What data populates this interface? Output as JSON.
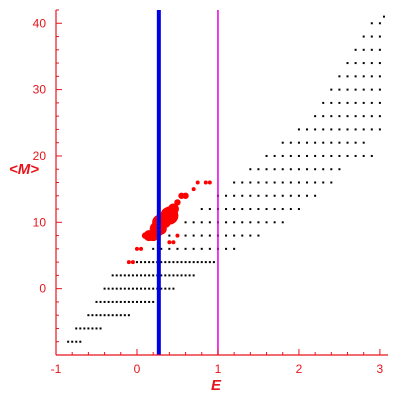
{
  "chart_data": {
    "type": "scatter",
    "title": "",
    "xlabel": "E",
    "ylabel": "<M>",
    "xlim": [
      -1,
      3.1
    ],
    "ylim": [
      -10,
      42
    ],
    "x_ticks": [
      -1,
      0,
      1,
      2,
      3
    ],
    "y_ticks": [
      0,
      10,
      20,
      30,
      40
    ],
    "grid": false,
    "legend": "none",
    "colors": {
      "axes": "#e8141c",
      "background_points": "#000000",
      "highlight_points": "#ff0000",
      "blue_line": "#0000e6",
      "magenta_line": "#e000e0"
    },
    "vertical_lines": [
      {
        "x": 0.27,
        "color": "blue"
      },
      {
        "x": 1.0,
        "color": "magenta"
      }
    ],
    "series": [
      {
        "values": [
          [
            -0.85,
            -8
          ],
          [
            -0.8,
            -8
          ],
          [
            -0.75,
            -8
          ],
          [
            -0.7,
            -8
          ],
          [
            -0.75,
            -6
          ],
          [
            -0.7,
            -6
          ],
          [
            -0.65,
            -6
          ],
          [
            -0.6,
            -6
          ],
          [
            -0.55,
            -6
          ],
          [
            -0.5,
            -6
          ],
          [
            -0.45,
            -6
          ],
          [
            -0.6,
            -4
          ],
          [
            -0.55,
            -4
          ],
          [
            -0.5,
            -4
          ],
          [
            -0.45,
            -4
          ],
          [
            -0.4,
            -4
          ],
          [
            -0.35,
            -4
          ],
          [
            -0.3,
            -4
          ],
          [
            -0.25,
            -4
          ],
          [
            -0.2,
            -4
          ],
          [
            -0.15,
            -4
          ],
          [
            -0.1,
            -4
          ],
          [
            -0.5,
            -2
          ],
          [
            -0.45,
            -2
          ],
          [
            -0.4,
            -2
          ],
          [
            -0.35,
            -2
          ],
          [
            -0.3,
            -2
          ],
          [
            -0.25,
            -2
          ],
          [
            -0.2,
            -2
          ],
          [
            -0.15,
            -2
          ],
          [
            -0.1,
            -2
          ],
          [
            -0.05,
            -2
          ],
          [
            0,
            -2
          ],
          [
            0.05,
            -2
          ],
          [
            0.1,
            -2
          ],
          [
            0.15,
            -2
          ],
          [
            0.2,
            -2
          ],
          [
            -0.4,
            0
          ],
          [
            -0.35,
            0
          ],
          [
            -0.3,
            0
          ],
          [
            -0.25,
            0
          ],
          [
            -0.2,
            0
          ],
          [
            -0.15,
            0
          ],
          [
            -0.1,
            0
          ],
          [
            -0.05,
            0
          ],
          [
            0,
            0
          ],
          [
            0.05,
            0
          ],
          [
            0.1,
            0
          ],
          [
            0.15,
            0
          ],
          [
            0.2,
            0
          ],
          [
            0.25,
            0
          ],
          [
            0.3,
            0
          ],
          [
            0.35,
            0
          ],
          [
            0.4,
            0
          ],
          [
            0.45,
            0
          ],
          [
            -0.3,
            2
          ],
          [
            -0.25,
            2
          ],
          [
            -0.2,
            2
          ],
          [
            -0.15,
            2
          ],
          [
            -0.1,
            2
          ],
          [
            -0.05,
            2
          ],
          [
            0,
            2
          ],
          [
            0.05,
            2
          ],
          [
            0.1,
            2
          ],
          [
            0.15,
            2
          ],
          [
            0.2,
            2
          ],
          [
            0.25,
            2
          ],
          [
            0.3,
            2
          ],
          [
            0.35,
            2
          ],
          [
            0.4,
            2
          ],
          [
            0.45,
            2
          ],
          [
            0.5,
            2
          ],
          [
            0.55,
            2
          ],
          [
            0.6,
            2
          ],
          [
            0.65,
            2
          ],
          [
            0.7,
            2
          ],
          [
            -0.1,
            4
          ],
          [
            -0.05,
            4
          ],
          [
            0,
            4
          ],
          [
            0.05,
            4
          ],
          [
            0.1,
            4
          ],
          [
            0.15,
            4
          ],
          [
            0.2,
            4
          ],
          [
            0.25,
            4
          ],
          [
            0.3,
            4
          ],
          [
            0.35,
            4
          ],
          [
            0.4,
            4
          ],
          [
            0.45,
            4
          ],
          [
            0.5,
            4
          ],
          [
            0.55,
            4
          ],
          [
            0.6,
            4
          ],
          [
            0.65,
            4
          ],
          [
            0.7,
            4
          ],
          [
            0.75,
            4
          ],
          [
            0.8,
            4
          ],
          [
            0.85,
            4
          ],
          [
            0.9,
            4
          ],
          [
            0.95,
            4
          ],
          [
            0.2,
            6
          ],
          [
            0.3,
            6
          ],
          [
            0.4,
            6
          ],
          [
            0.5,
            6
          ],
          [
            0.6,
            6
          ],
          [
            0.7,
            6
          ],
          [
            0.8,
            6
          ],
          [
            0.9,
            6
          ],
          [
            1.0,
            6
          ],
          [
            1.1,
            6
          ],
          [
            1.2,
            6
          ],
          [
            0.4,
            8
          ],
          [
            0.5,
            8
          ],
          [
            0.6,
            8
          ],
          [
            0.7,
            8
          ],
          [
            0.8,
            8
          ],
          [
            0.9,
            8
          ],
          [
            1.0,
            8
          ],
          [
            1.1,
            8
          ],
          [
            1.2,
            8
          ],
          [
            1.3,
            8
          ],
          [
            1.4,
            8
          ],
          [
            1.5,
            8
          ],
          [
            0.6,
            10
          ],
          [
            0.7,
            10
          ],
          [
            0.8,
            10
          ],
          [
            0.9,
            10
          ],
          [
            1.0,
            10
          ],
          [
            1.1,
            10
          ],
          [
            1.2,
            10
          ],
          [
            1.3,
            10
          ],
          [
            1.4,
            10
          ],
          [
            1.5,
            10
          ],
          [
            1.6,
            10
          ],
          [
            1.7,
            10
          ],
          [
            1.8,
            10
          ],
          [
            0.8,
            12
          ],
          [
            0.9,
            12
          ],
          [
            1.0,
            12
          ],
          [
            1.1,
            12
          ],
          [
            1.2,
            12
          ],
          [
            1.3,
            12
          ],
          [
            1.4,
            12
          ],
          [
            1.5,
            12
          ],
          [
            1.6,
            12
          ],
          [
            1.7,
            12
          ],
          [
            1.8,
            12
          ],
          [
            1.9,
            12
          ],
          [
            2.0,
            12
          ],
          [
            1.0,
            14
          ],
          [
            1.1,
            14
          ],
          [
            1.2,
            14
          ],
          [
            1.3,
            14
          ],
          [
            1.4,
            14
          ],
          [
            1.5,
            14
          ],
          [
            1.6,
            14
          ],
          [
            1.7,
            14
          ],
          [
            1.8,
            14
          ],
          [
            1.9,
            14
          ],
          [
            2.0,
            14
          ],
          [
            2.1,
            14
          ],
          [
            2.2,
            14
          ],
          [
            1.2,
            16
          ],
          [
            1.3,
            16
          ],
          [
            1.4,
            16
          ],
          [
            1.5,
            16
          ],
          [
            1.6,
            16
          ],
          [
            1.7,
            16
          ],
          [
            1.8,
            16
          ],
          [
            1.9,
            16
          ],
          [
            2.0,
            16
          ],
          [
            2.1,
            16
          ],
          [
            2.2,
            16
          ],
          [
            2.3,
            16
          ],
          [
            2.4,
            16
          ],
          [
            1.4,
            18
          ],
          [
            1.5,
            18
          ],
          [
            1.6,
            18
          ],
          [
            1.7,
            18
          ],
          [
            1.8,
            18
          ],
          [
            1.9,
            18
          ],
          [
            2.0,
            18
          ],
          [
            2.1,
            18
          ],
          [
            2.2,
            18
          ],
          [
            2.3,
            18
          ],
          [
            2.4,
            18
          ],
          [
            2.5,
            18
          ],
          [
            1.6,
            20
          ],
          [
            1.7,
            20
          ],
          [
            1.8,
            20
          ],
          [
            1.9,
            20
          ],
          [
            2.0,
            20
          ],
          [
            2.1,
            20
          ],
          [
            2.2,
            20
          ],
          [
            2.3,
            20
          ],
          [
            2.4,
            20
          ],
          [
            2.5,
            20
          ],
          [
            2.6,
            20
          ],
          [
            2.7,
            20
          ],
          [
            2.8,
            20
          ],
          [
            2.9,
            20
          ],
          [
            1.8,
            22
          ],
          [
            1.9,
            22
          ],
          [
            2.0,
            22
          ],
          [
            2.1,
            22
          ],
          [
            2.2,
            22
          ],
          [
            2.3,
            22
          ],
          [
            2.4,
            22
          ],
          [
            2.5,
            22
          ],
          [
            2.6,
            22
          ],
          [
            2.7,
            22
          ],
          [
            2.8,
            22
          ],
          [
            2.0,
            24
          ],
          [
            2.1,
            24
          ],
          [
            2.2,
            24
          ],
          [
            2.3,
            24
          ],
          [
            2.4,
            24
          ],
          [
            2.5,
            24
          ],
          [
            2.6,
            24
          ],
          [
            2.7,
            24
          ],
          [
            2.8,
            24
          ],
          [
            2.9,
            24
          ],
          [
            3.0,
            24
          ],
          [
            2.2,
            26
          ],
          [
            2.3,
            26
          ],
          [
            2.4,
            26
          ],
          [
            2.5,
            26
          ],
          [
            2.6,
            26
          ],
          [
            2.7,
            26
          ],
          [
            2.8,
            26
          ],
          [
            2.9,
            26
          ],
          [
            3.0,
            26
          ],
          [
            2.3,
            28
          ],
          [
            2.4,
            28
          ],
          [
            2.5,
            28
          ],
          [
            2.6,
            28
          ],
          [
            2.7,
            28
          ],
          [
            2.8,
            28
          ],
          [
            2.9,
            28
          ],
          [
            3.0,
            28
          ],
          [
            2.4,
            30
          ],
          [
            2.5,
            30
          ],
          [
            2.6,
            30
          ],
          [
            2.7,
            30
          ],
          [
            2.8,
            30
          ],
          [
            2.9,
            30
          ],
          [
            3.0,
            30
          ],
          [
            2.5,
            32
          ],
          [
            2.6,
            32
          ],
          [
            2.7,
            32
          ],
          [
            2.8,
            32
          ],
          [
            2.9,
            32
          ],
          [
            3.0,
            32
          ],
          [
            2.6,
            34
          ],
          [
            2.7,
            34
          ],
          [
            2.8,
            34
          ],
          [
            2.9,
            34
          ],
          [
            3.0,
            34
          ],
          [
            2.7,
            36
          ],
          [
            2.8,
            36
          ],
          [
            2.9,
            36
          ],
          [
            3.0,
            36
          ],
          [
            2.8,
            38
          ],
          [
            2.9,
            38
          ],
          [
            3.0,
            38
          ],
          [
            2.9,
            40
          ],
          [
            3.0,
            40
          ],
          [
            3.05,
            41
          ]
        ]
      },
      {
        "values": [
          [
            0.0,
            6
          ],
          [
            0.05,
            6
          ],
          [
            -0.1,
            4
          ],
          [
            -0.05,
            4
          ],
          [
            0.1,
            8
          ],
          [
            0.15,
            8
          ],
          [
            0.2,
            8
          ],
          [
            0.25,
            9
          ],
          [
            0.3,
            9
          ],
          [
            0.28,
            10
          ],
          [
            0.35,
            10
          ],
          [
            0.4,
            11
          ],
          [
            0.45,
            12
          ],
          [
            0.5,
            13
          ],
          [
            0.55,
            14
          ],
          [
            0.6,
            14
          ],
          [
            0.7,
            15
          ],
          [
            0.75,
            16
          ],
          [
            0.85,
            16
          ],
          [
            0.9,
            16
          ],
          [
            0.4,
            7
          ],
          [
            0.45,
            7
          ],
          [
            0.5,
            8
          ]
        ],
        "sizes": [
          1,
          1,
          1,
          1,
          2,
          3,
          3,
          4,
          3,
          4,
          3,
          5,
          3,
          2,
          2,
          2,
          1,
          1,
          1,
          1,
          1,
          1,
          1
        ]
      }
    ]
  }
}
